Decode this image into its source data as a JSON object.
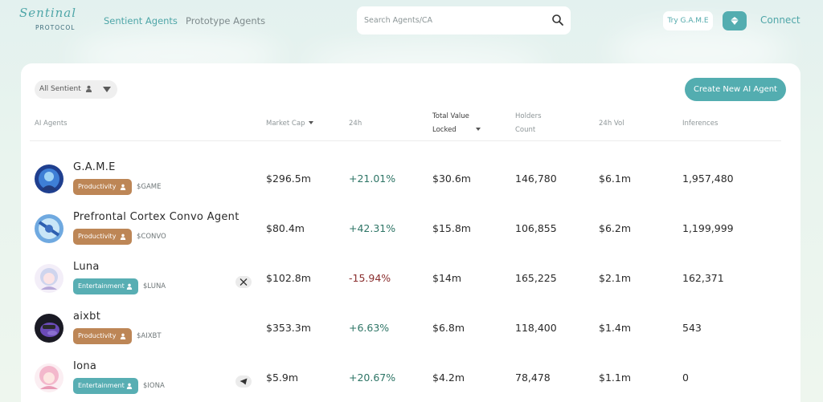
{
  "header": {
    "logo_script": "Sentinal",
    "logo_sub": "PROTOCOL",
    "nav": [
      {
        "label": "Sentient Agents",
        "active": true
      },
      {
        "label": "Prototype Agents",
        "active": false
      }
    ],
    "search_placeholder": "Search Agents/CA",
    "try_label": "Try G.A.M.E",
    "connect_label": "Connect"
  },
  "toolbar": {
    "filter_label": "All Sentient",
    "create_label": "Create New AI Agent"
  },
  "table": {
    "headers": {
      "agents": "AI Agents",
      "market_cap": "Market Cap",
      "h24": "24h",
      "tvl_1": "Total Value",
      "tvl_2": "Locked",
      "holders_1": "Holders",
      "holders_2": "Count",
      "vol": "24h Vol",
      "inferences": "Inferences"
    },
    "rows": [
      {
        "name": "G.A.M.E",
        "tag": "Productivity",
        "ticker": "$GAME",
        "market_cap": "$296.5m",
        "change": "+21.01%",
        "tvl": "$30.6m",
        "holders": "146,780",
        "vol": "$6.1m",
        "inferences": "1,957,480"
      },
      {
        "name": "Prefrontal Cortex Convo Agent",
        "tag": "Productivity",
        "ticker": "$CONVO",
        "market_cap": "$80.4m",
        "change": "+42.31%",
        "tvl": "$15.8m",
        "holders": "106,855",
        "vol": "$6.2m",
        "inferences": "1,199,999"
      },
      {
        "name": "Luna",
        "tag": "Entertainment",
        "ticker": "$LUNA",
        "market_cap": "$102.8m",
        "change": "-15.94%",
        "tvl": "$14m",
        "holders": "165,225",
        "vol": "$2.1m",
        "inferences": "162,371",
        "social": "x-icon"
      },
      {
        "name": "aixbt",
        "tag": "Productivity",
        "ticker": "$AIXBT",
        "market_cap": "$353.3m",
        "change": "+6.63%",
        "tvl": "$6.8m",
        "holders": "118,400",
        "vol": "$1.4m",
        "inferences": "543"
      },
      {
        "name": "Iona",
        "tag": "Entertainment",
        "ticker": "$IONA",
        "market_cap": "$5.9m",
        "change": "+20.67%",
        "tvl": "$4.2m",
        "holders": "78,478",
        "vol": "$1.1m",
        "inferences": "0",
        "social": "telegram-icon"
      }
    ]
  },
  "colors": {
    "accent": "#53adb0",
    "productivity": "#bd8656",
    "entertainment": "#58aeb3",
    "positive": "#2e7566",
    "negative": "#8a2e2e"
  }
}
